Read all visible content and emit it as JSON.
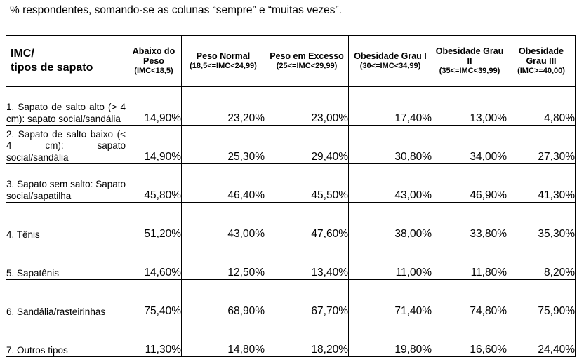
{
  "caption": "% respondentes, somando-se as colunas “sempre” e “muitas vezes”.",
  "table": {
    "corner_line1": "IMC/",
    "corner_line2": "tipos de sapato",
    "columns": [
      {
        "main": "Abaixo do Peso",
        "range": "(IMC<18,5)"
      },
      {
        "main": "Peso Normal",
        "range": "(18,5<=IMC<24,99)"
      },
      {
        "main": "Peso em Excesso",
        "range": "(25<=IMC<29,99)"
      },
      {
        "main": "Obesidade Grau I",
        "range": "(30<=IMC<34,99)"
      },
      {
        "main": "Obesidade Grau II",
        "range": "(35<=IMC<39,99)"
      },
      {
        "main": "Obesidade Grau III",
        "range": "(IMC>=40,00)"
      }
    ],
    "rows": [
      {
        "label": "1. Sapato de salto alto (> 4 cm): sapato social/sandália",
        "values": [
          "14,90%",
          "23,20%",
          "23,00%",
          "17,40%",
          "13,00%",
          "4,80%"
        ]
      },
      {
        "label": "2. Sapato de salto baixo (< 4 cm): sapato social/sandália",
        "values": [
          "14,90%",
          "25,30%",
          "29,40%",
          "30,80%",
          "34,00%",
          "27,30%"
        ]
      },
      {
        "label": "3. Sapato sem salto: Sapato social/sapatilha",
        "values": [
          "45,80%",
          "46,40%",
          "45,50%",
          "43,00%",
          "46,90%",
          "41,30%"
        ]
      },
      {
        "label": "4. Tênis",
        "values": [
          "51,20%",
          "43,00%",
          "47,60%",
          "38,00%",
          "33,80%",
          "35,30%"
        ]
      },
      {
        "label": "5. Sapatênis",
        "values": [
          "14,60%",
          "12,50%",
          "13,40%",
          "11,00%",
          "11,80%",
          "8,20%"
        ]
      },
      {
        "label": "6. Sandália/rasteirinhas",
        "values": [
          "75,40%",
          "68,90%",
          "67,70%",
          "71,40%",
          "74,80%",
          "75,90%"
        ]
      },
      {
        "label": "7. Outros tipos",
        "values": [
          "11,30%",
          "14,80%",
          "18,20%",
          "19,80%",
          "16,60%",
          "24,40%"
        ]
      }
    ]
  }
}
